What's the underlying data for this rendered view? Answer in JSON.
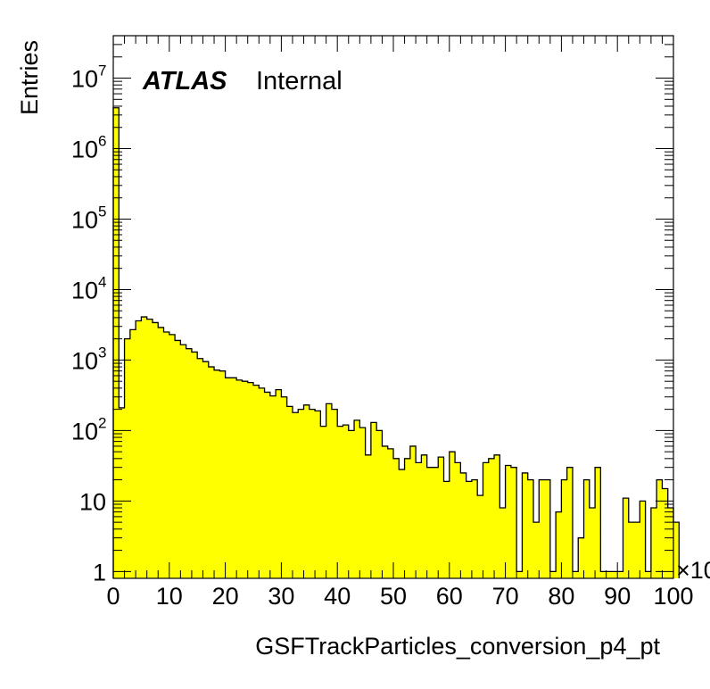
{
  "chart_data": {
    "type": "bar",
    "xlabel": "GSFTrackParticles_conversion_p4_pt",
    "ylabel": "Entries",
    "x_multiplier_label": "×10",
    "x_tick_labels": [
      "0",
      "10",
      "20",
      "30",
      "40",
      "50",
      "60",
      "70",
      "80",
      "90",
      "100"
    ],
    "xlim": [
      0,
      100
    ],
    "ylim": [
      0.8,
      40000000
    ],
    "y_scale": "log",
    "bin_width": 1,
    "fill_color": "#ffff00",
    "line_color": "#000000",
    "labels": {
      "experiment": "ATLAS",
      "status": "Internal"
    },
    "values": [
      3800000,
      210,
      2000,
      2700,
      3600,
      4100,
      3800,
      3400,
      2900,
      2500,
      2300,
      1900,
      1650,
      1450,
      1300,
      1050,
      950,
      800,
      720,
      700,
      560,
      560,
      520,
      500,
      480,
      440,
      400,
      350,
      310,
      380,
      300,
      220,
      180,
      200,
      230,
      200,
      190,
      115,
      240,
      200,
      115,
      120,
      100,
      140,
      110,
      45,
      130,
      100,
      60,
      55,
      40,
      28,
      40,
      60,
      35,
      45,
      30,
      30,
      42,
      19,
      50,
      35,
      25,
      19,
      20,
      12,
      35,
      40,
      45,
      8,
      32,
      30,
      1,
      25,
      20,
      5,
      20,
      20,
      1,
      7,
      20,
      30,
      1,
      3,
      20,
      8,
      30,
      1,
      1,
      1,
      1,
      11,
      5,
      5,
      10,
      1,
      8,
      20,
      15,
      8,
      5
    ]
  }
}
